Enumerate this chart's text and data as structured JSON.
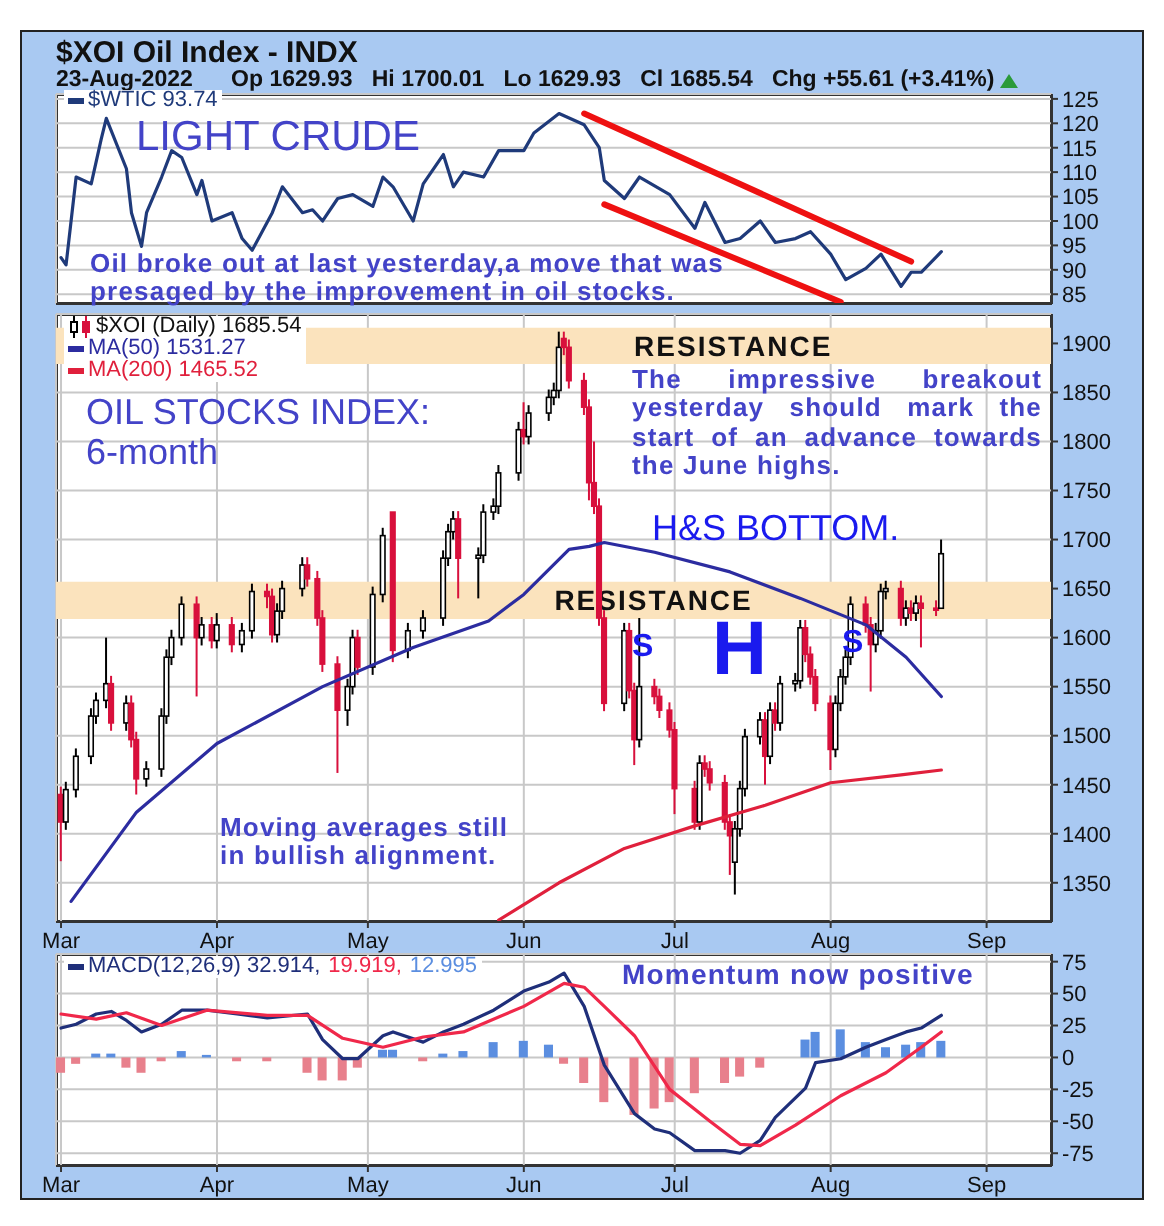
{
  "chart_data": [
    {
      "type": "line",
      "title": "$XOI Oil Index - INDX",
      "subtitle": "23-Aug-2022      Op 1629.93   Hi 1700.01   Lo 1629.93   Cl 1685.54   Chg +55.61 (+3.41%)",
      "annotations": [
        "LIGHT CRUDE",
        "Oil broke out at last yesterday,a move that was presaged by the improvement in oil stocks."
      ],
      "series": [
        {
          "name": "$WTIC 93.74",
          "color": "#1f3a7a",
          "x": [
            "2022-03-01",
            "2022-03-02",
            "2022-03-04",
            "2022-03-07",
            "2022-03-09",
            "2022-03-10",
            "2022-03-14",
            "2022-03-15",
            "2022-03-17",
            "2022-03-18",
            "2022-03-21",
            "2022-03-23",
            "2022-03-25",
            "2022-03-28",
            "2022-03-29",
            "2022-03-31",
            "2022-04-04",
            "2022-04-06",
            "2022-04-08",
            "2022-04-12",
            "2022-04-14",
            "2022-04-18",
            "2022-04-20",
            "2022-04-22",
            "2022-04-25",
            "2022-04-28",
            "2022-05-02",
            "2022-05-04",
            "2022-05-06",
            "2022-05-10",
            "2022-05-12",
            "2022-05-16",
            "2022-05-18",
            "2022-05-20",
            "2022-05-24",
            "2022-05-27",
            "2022-06-01",
            "2022-06-03",
            "2022-06-08",
            "2022-06-13",
            "2022-06-16",
            "2022-06-17",
            "2022-06-21",
            "2022-06-24",
            "2022-06-30",
            "2022-07-05",
            "2022-07-07",
            "2022-07-11",
            "2022-07-14",
            "2022-07-18",
            "2022-07-21",
            "2022-07-25",
            "2022-07-28",
            "2022-08-01",
            "2022-08-04",
            "2022-08-08",
            "2022-08-11",
            "2022-08-15",
            "2022-08-17",
            "2022-08-19",
            "2022-08-23"
          ],
          "values": [
            92.5,
            91,
            109,
            107.6,
            116.8,
            121,
            110.7,
            101.7,
            94.8,
            101.7,
            109,
            114.4,
            113,
            105.4,
            108.3,
            100,
            101.7,
            96.4,
            94,
            101.7,
            107,
            101.7,
            102.3,
            100,
            104.6,
            105.4,
            103,
            109,
            107,
            100,
            107.6,
            113.6,
            107,
            110,
            109,
            114.4,
            114.4,
            118,
            122,
            119.7,
            115,
            108.3,
            104.6,
            109,
            105.4,
            98.5,
            103.8,
            95.6,
            96.4,
            100,
            95.6,
            96.4,
            97.8,
            93.2,
            88,
            90.3,
            93.2,
            86.6,
            89.5,
            89.5,
            93.7
          ]
        },
        {
          "type": "line",
          "color": "#ee1111",
          "x": [
            "2022-06-13",
            "2022-08-17"
          ],
          "values": [
            122,
            91.7
          ]
        },
        {
          "type": "line",
          "color": "#ee1111",
          "x": [
            "2022-06-17",
            "2022-08-03"
          ],
          "values": [
            103.4,
            83.4
          ]
        }
      ],
      "xlim": [
        "2022-02-28",
        "2022-09-14"
      ],
      "xticks": [
        {
          "value": "2022-03-01",
          "label": null
        },
        {
          "value": "2022-04-01",
          "label": null
        },
        {
          "value": "2022-05-01",
          "label": null
        },
        {
          "value": "2022-06-01",
          "label": null
        },
        {
          "value": "2022-07-01",
          "label": null
        },
        {
          "value": "2022-08-01",
          "label": null
        },
        {
          "value": "2022-09-01",
          "label": null
        }
      ],
      "ylim": [
        83,
        126
      ],
      "yticks": [
        85,
        90,
        95,
        100,
        105,
        110,
        115,
        120,
        125
      ],
      "grid": true,
      "legend": "top left",
      "tick_labels": "y"
    },
    {
      "type": "candlestick",
      "annotations": [
        "OIL STOCKS INDEX: 6-month",
        "The impressive breakout yesterday should mark the start of an advance towards the June highs.",
        "H&S BOTTOM.",
        "Moving averages still in bullish alignment.",
        "S",
        "H",
        "S"
      ],
      "bands": [
        {
          "axis": "y",
          "from": 1879,
          "to": 1916,
          "label": "RESISTANCE",
          "color": "#fbe3bd"
        },
        {
          "axis": "y",
          "from": 1619,
          "to": 1657,
          "label": "RESISTANCE",
          "color": "#fbe3bd"
        }
      ],
      "series": [
        {
          "type": "candlestick",
          "name": "$XOI (Daily) 1685.54",
          "color": "#d8103c",
          "colors": [
            "#d8103c",
            "#ffffff",
            "#ffffff",
            "#ffffff",
            "#ffffff",
            "#ffffff",
            "#d8103c",
            "#ffffff",
            "#d8103c",
            "#d8103c",
            "#ffffff",
            "#ffffff",
            "#ffffff",
            "#ffffff",
            "#ffffff",
            "#d8103c",
            "#ffffff",
            "#d8103c",
            "#ffffff",
            "#d8103c",
            "#ffffff",
            "#ffffff",
            "#d8103c",
            "#d8103c",
            "#ffffff",
            "#ffffff",
            "#ffffff",
            "#d8103c",
            "#d8103c",
            "#d8103c",
            "#d8103c",
            "#ffffff",
            "#ffffff",
            "#d8103c",
            "#ffffff",
            "#ffffff",
            "#d8103c",
            "#ffffff",
            "#ffffff",
            "#ffffff",
            "#ffffff",
            "#ffffff",
            "#d8103c",
            "#ffffff",
            "#ffffff",
            "#ffffff",
            "#ffffff",
            "#ffffff",
            "#d8103c",
            "#ffffff",
            "#ffffff",
            "#ffffff",
            "#ffffff",
            "#d8103c",
            "#d8103c",
            "#d8103c",
            "#d8103c",
            "#d8103c",
            "#d8103c",
            "#d8103c",
            "#ffffff",
            "#d8103c",
            "#d8103c",
            "#ffffff",
            "#d8103c",
            "#d8103c",
            "#d8103c",
            "#d8103c",
            "#d8103c",
            "#ffffff",
            "#d8103c",
            "#d8103c",
            "#d8103c",
            "#d8103c",
            "#ffffff",
            "#ffffff",
            "#ffffff",
            "#ffffff",
            "#d8103c",
            "#ffffff",
            "#d8103c",
            "#ffffff",
            "#ffffff",
            "#ffffff",
            "#d8103c",
            "#d8103c",
            "#d8103c",
            "#d8103c",
            "#ffffff",
            "#ffffff",
            "#ffffff",
            "#ffffff",
            "#d8103c",
            "#d8103c",
            "#ffffff",
            "#ffffff",
            "#ffffff",
            "#d8103c",
            "#ffffff",
            "#d8103c",
            "#ffffff",
            "#d8103c",
            "#d8103c",
            "#ffffff"
          ],
          "x": [
            "2022-03-01",
            "2022-03-02",
            "2022-03-04",
            "2022-03-07",
            "2022-03-08",
            "2022-03-10",
            "2022-03-11",
            "2022-03-14",
            "2022-03-15",
            "2022-03-16",
            "2022-03-18",
            "2022-03-21",
            "2022-03-22",
            "2022-03-23",
            "2022-03-25",
            "2022-03-28",
            "2022-03-29",
            "2022-03-31",
            "2022-04-01",
            "2022-04-04",
            "2022-04-06",
            "2022-04-08",
            "2022-04-11",
            "2022-04-12",
            "2022-04-13",
            "2022-04-14",
            "2022-04-18",
            "2022-04-19",
            "2022-04-21",
            "2022-04-22",
            "2022-04-25",
            "2022-04-27",
            "2022-04-28",
            "2022-04-29",
            "2022-05-02",
            "2022-05-04",
            "2022-05-06",
            "2022-05-09",
            "2022-05-12",
            "2022-05-16",
            "2022-05-17",
            "2022-05-18",
            "2022-05-19",
            "2022-05-23",
            "2022-05-24",
            "2022-05-26",
            "2022-05-27",
            "2022-05-31",
            "2022-06-01",
            "2022-06-02",
            "2022-06-06",
            "2022-06-07",
            "2022-06-08",
            "2022-06-09",
            "2022-06-10",
            "2022-06-13",
            "2022-06-14",
            "2022-06-15",
            "2022-06-16",
            "2022-06-17",
            "2022-06-21",
            "2022-06-22",
            "2022-06-23",
            "2022-06-24",
            "2022-06-27",
            "2022-06-28",
            "2022-06-30",
            "2022-07-01",
            "2022-07-05",
            "2022-07-06",
            "2022-07-07",
            "2022-07-08",
            "2022-07-11",
            "2022-07-12",
            "2022-07-13",
            "2022-07-14",
            "2022-07-15",
            "2022-07-18",
            "2022-07-19",
            "2022-07-20",
            "2022-07-21",
            "2022-07-22",
            "2022-07-25",
            "2022-07-26",
            "2022-07-27",
            "2022-07-28",
            "2022-07-29",
            "2022-08-01",
            "2022-08-02",
            "2022-08-03",
            "2022-08-04",
            "2022-08-05",
            "2022-08-08",
            "2022-08-09",
            "2022-08-10",
            "2022-08-11",
            "2022-08-12",
            "2022-08-15",
            "2022-08-16",
            "2022-08-17",
            "2022-08-18",
            "2022-08-19",
            "2022-08-22",
            "2022-08-23"
          ],
          "ohlc": [
            [
              1440,
              1448,
              1372,
              1412
            ],
            [
              1412,
              1453,
              1404,
              1445
            ],
            [
              1445,
              1487,
              1437,
              1479
            ],
            [
              1479,
              1528,
              1471,
              1520
            ],
            [
              1520,
              1544,
              1512,
              1536
            ],
            [
              1536,
              1600,
              1528,
              1553
            ],
            [
              1553,
              1561,
              1505,
              1513
            ],
            [
              1513,
              1541,
              1505,
              1533
            ],
            [
              1533,
              1541,
              1488,
              1496
            ],
            [
              1496,
              1504,
              1440,
              1456
            ],
            [
              1456,
              1474,
              1448,
              1466
            ],
            [
              1466,
              1528,
              1458,
              1520
            ],
            [
              1520,
              1588,
              1512,
              1580
            ],
            [
              1580,
              1608,
              1572,
              1600
            ],
            [
              1600,
              1642,
              1592,
              1634
            ],
            [
              1634,
              1642,
              1540,
              1600
            ],
            [
              1600,
              1621,
              1592,
              1613
            ],
            [
              1613,
              1621,
              1589,
              1597
            ],
            [
              1597,
              1625,
              1589,
              1613
            ],
            [
              1613,
              1621,
              1585,
              1593
            ],
            [
              1593,
              1615,
              1585,
              1607
            ],
            [
              1607,
              1655,
              1599,
              1647
            ],
            [
              1647,
              1655,
              1630,
              1642
            ],
            [
              1642,
              1650,
              1595,
              1603
            ],
            [
              1603,
              1635,
              1595,
              1627
            ],
            [
              1627,
              1658,
              1619,
              1650
            ],
            [
              1650,
              1682,
              1642,
              1674
            ],
            [
              1674,
              1682,
              1652,
              1660
            ],
            [
              1660,
              1668,
              1612,
              1620
            ],
            [
              1620,
              1628,
              1565,
              1573
            ],
            [
              1573,
              1581,
              1462,
              1526
            ],
            [
              1526,
              1558,
              1510,
              1550
            ],
            [
              1550,
              1608,
              1542,
              1600
            ],
            [
              1600,
              1608,
              1562,
              1570
            ],
            [
              1570,
              1652,
              1562,
              1644
            ],
            [
              1644,
              1712,
              1636,
              1704
            ],
            [
              1728,
              1728,
              1575,
              1587
            ],
            [
              1587,
              1615,
              1579,
              1607
            ],
            [
              1607,
              1628,
              1599,
              1620
            ],
            [
              1620,
              1689,
              1612,
              1681
            ],
            [
              1681,
              1716,
              1673,
              1708
            ],
            [
              1708,
              1729,
              1700,
              1721
            ],
            [
              1721,
              1729,
              1640,
              1681
            ],
            [
              1681,
              1692,
              1640,
              1684
            ],
            [
              1684,
              1736,
              1676,
              1728
            ],
            [
              1728,
              1742,
              1720,
              1734
            ],
            [
              1734,
              1776,
              1726,
              1768
            ],
            [
              1768,
              1820,
              1760,
              1812
            ],
            [
              1812,
              1840,
              1797,
              1805
            ],
            [
              1805,
              1837,
              1797,
              1829
            ],
            [
              1829,
              1853,
              1821,
              1845
            ],
            [
              1845,
              1860,
              1837,
              1852
            ],
            [
              1852,
              1912,
              1844,
              1896
            ],
            [
              1905,
              1912,
              1888,
              1896
            ],
            [
              1896,
              1904,
              1854,
              1862
            ],
            [
              1862,
              1870,
              1827,
              1835
            ],
            [
              1835,
              1843,
              1740,
              1758
            ],
            [
              1758,
              1800,
              1726,
              1734
            ],
            [
              1734,
              1742,
              1612,
              1620
            ],
            [
              1620,
              1628,
              1525,
              1533
            ],
            [
              1533,
              1615,
              1525,
              1607
            ],
            [
              1607,
              1615,
              1538,
              1546
            ],
            [
              1546,
              1554,
              1470,
              1496
            ],
            [
              1496,
              1620,
              1488,
              1550
            ],
            [
              1550,
              1558,
              1532,
              1540
            ],
            [
              1540,
              1548,
              1518,
              1526
            ],
            [
              1526,
              1534,
              1498,
              1506
            ],
            [
              1506,
              1514,
              1420,
              1446
            ],
            [
              1446,
              1454,
              1404,
              1412
            ],
            [
              1412,
              1480,
              1404,
              1472
            ],
            [
              1472,
              1480,
              1458,
              1466
            ],
            [
              1466,
              1474,
              1444,
              1452
            ],
            [
              1452,
              1460,
              1404,
              1412
            ],
            [
              1412,
              1420,
              1358,
              1398
            ],
            [
              1371,
              1413,
              1338,
              1405
            ],
            [
              1405,
              1454,
              1397,
              1446
            ],
            [
              1446,
              1507,
              1438,
              1499
            ],
            [
              1499,
              1524,
              1491,
              1516
            ],
            [
              1516,
              1524,
              1450,
              1479
            ],
            [
              1479,
              1534,
              1471,
              1526
            ],
            [
              1526,
              1534,
              1505,
              1513
            ],
            [
              1513,
              1561,
              1505,
              1553
            ],
            [
              1553,
              1564,
              1545,
              1556
            ],
            [
              1556,
              1618,
              1548,
              1610
            ],
            [
              1610,
              1618,
              1575,
              1583
            ],
            [
              1583,
              1591,
              1552,
              1560
            ],
            [
              1560,
              1568,
              1525,
              1533
            ],
            [
              1533,
              1541,
              1465,
              1486
            ],
            [
              1486,
              1541,
              1478,
              1533
            ],
            [
              1533,
              1568,
              1525,
              1560
            ],
            [
              1560,
              1588,
              1552,
              1580
            ],
            [
              1580,
              1642,
              1572,
              1634
            ],
            [
              1634,
              1642,
              1605,
              1613
            ],
            [
              1613,
              1621,
              1545,
              1593
            ],
            [
              1593,
              1615,
              1585,
              1607
            ],
            [
              1607,
              1655,
              1599,
              1647
            ],
            [
              1647,
              1658,
              1639,
              1650
            ],
            [
              1650,
              1658,
              1612,
              1620
            ],
            [
              1620,
              1638,
              1612,
              1630
            ],
            [
              1630,
              1638,
              1617,
              1625
            ],
            [
              1625,
              1643,
              1617,
              1635
            ],
            [
              1635,
              1643,
              1590,
              1630
            ],
            [
              1630,
              1638,
              1622,
              1629.93
            ],
            [
              1629.93,
              1700.01,
              1629.93,
              1685.54
            ]
          ]
        },
        {
          "type": "line",
          "name": "MA(50) 1531.27",
          "color": "#2c2ca0",
          "x": [
            "2022-03-03",
            "2022-03-16",
            "2022-04-01",
            "2022-04-22",
            "2022-05-10",
            "2022-05-25",
            "2022-06-01",
            "2022-06-10",
            "2022-06-14",
            "2022-06-17",
            "2022-06-27",
            "2022-07-12",
            "2022-07-26",
            "2022-08-08",
            "2022-08-16",
            "2022-08-23"
          ],
          "values": [
            1331,
            1422,
            1492,
            1550,
            1590,
            1617,
            1644,
            1690,
            1693,
            1697,
            1687,
            1667,
            1640,
            1613,
            1580,
            1540
          ]
        },
        {
          "type": "line",
          "name": "MA(200) 1465.52",
          "color": "#e0203c",
          "x": [
            "2022-05-27",
            "2022-06-08",
            "2022-06-21",
            "2022-07-05",
            "2022-07-19",
            "2022-08-01",
            "2022-08-15",
            "2022-08-23"
          ],
          "values": [
            1312,
            1350,
            1385,
            1408,
            1429,
            1452,
            1460,
            1465
          ]
        }
      ],
      "xlim": [
        "2022-02-28",
        "2022-09-14"
      ],
      "xticks": [
        {
          "value": "2022-03-01",
          "label": "Mar"
        },
        {
          "value": "2022-04-01",
          "label": "Apr"
        },
        {
          "value": "2022-05-01",
          "label": "May"
        },
        {
          "value": "2022-06-01",
          "label": "Jun"
        },
        {
          "value": "2022-07-01",
          "label": "Jul"
        },
        {
          "value": "2022-08-01",
          "label": "Aug"
        },
        {
          "value": "2022-09-01",
          "label": "Sep"
        }
      ],
      "ylim": [
        1310,
        1930
      ],
      "yticks": [
        1350,
        1400,
        1450,
        1500,
        1550,
        1600,
        1650,
        1700,
        1750,
        1800,
        1850,
        1900
      ],
      "grid": true,
      "legend": "top left"
    },
    {
      "type": "line",
      "annotations": [
        "Momentum now positive"
      ],
      "series": [
        {
          "name": "MACD(12,26,9) 32.914,",
          "color": "#1f2f7a",
          "x": [
            "2022-03-01",
            "2022-03-04",
            "2022-03-08",
            "2022-03-11",
            "2022-03-14",
            "2022-03-17",
            "2022-03-21",
            "2022-03-25",
            "2022-03-30",
            "2022-04-05",
            "2022-04-11",
            "2022-04-19",
            "2022-04-22",
            "2022-04-26",
            "2022-04-29",
            "2022-05-04",
            "2022-05-06",
            "2022-05-12",
            "2022-05-16",
            "2022-05-20",
            "2022-05-26",
            "2022-06-01",
            "2022-06-06",
            "2022-06-09",
            "2022-06-13",
            "2022-06-17",
            "2022-06-23",
            "2022-06-27",
            "2022-06-30",
            "2022-07-05",
            "2022-07-11",
            "2022-07-14",
            "2022-07-18",
            "2022-07-21",
            "2022-07-27",
            "2022-07-29",
            "2022-08-03",
            "2022-08-08",
            "2022-08-12",
            "2022-08-16",
            "2022-08-19",
            "2022-08-23"
          ],
          "values": [
            23,
            26,
            34,
            36,
            29,
            20,
            26,
            37,
            37,
            34,
            31,
            34,
            14,
            -1,
            -1,
            17,
            20,
            12,
            20,
            26,
            37,
            52,
            59,
            66,
            40,
            -6,
            -44,
            -56,
            -59,
            -73,
            -73,
            -75,
            -65,
            -47,
            -24,
            -4,
            -1,
            8,
            14,
            20,
            23,
            33
          ]
        },
        {
          "name": "19.919,",
          "color": "#f0284a",
          "x": [
            "2022-03-01",
            "2022-03-08",
            "2022-03-14",
            "2022-03-21",
            "2022-03-30",
            "2022-04-11",
            "2022-04-19",
            "2022-04-26",
            "2022-05-04",
            "2022-05-12",
            "2022-05-20",
            "2022-06-01",
            "2022-06-09",
            "2022-06-13",
            "2022-06-17",
            "2022-06-23",
            "2022-06-30",
            "2022-07-08",
            "2022-07-14",
            "2022-07-18",
            "2022-07-25",
            "2022-08-03",
            "2022-08-12",
            "2022-08-19",
            "2022-08-23"
          ],
          "values": [
            34,
            30,
            35,
            25,
            37,
            33,
            33,
            15,
            8,
            16,
            20,
            40,
            58,
            55,
            40,
            17,
            -25,
            -50,
            -68,
            -69,
            -53,
            -30,
            -12,
            8,
            20
          ]
        },
        {
          "type": "bar",
          "name": "12.995",
          "color": "#5b8ee0",
          "x": [
            "2022-03-01",
            "2022-03-04",
            "2022-03-08",
            "2022-03-11",
            "2022-03-14",
            "2022-03-17",
            "2022-03-21",
            "2022-03-25",
            "2022-03-30",
            "2022-04-05",
            "2022-04-11",
            "2022-04-19",
            "2022-04-22",
            "2022-04-26",
            "2022-04-29",
            "2022-05-04",
            "2022-05-06",
            "2022-05-12",
            "2022-05-16",
            "2022-05-20",
            "2022-05-26",
            "2022-06-01",
            "2022-06-06",
            "2022-06-09",
            "2022-06-13",
            "2022-06-17",
            "2022-06-23",
            "2022-06-27",
            "2022-06-30",
            "2022-07-05",
            "2022-07-11",
            "2022-07-14",
            "2022-07-18",
            "2022-07-21",
            "2022-07-27",
            "2022-07-29",
            "2022-08-03",
            "2022-08-08",
            "2022-08-12",
            "2022-08-16",
            "2022-08-19",
            "2022-08-23"
          ],
          "values": [
            -12,
            -5,
            3,
            3,
            -8,
            -12,
            -3,
            5,
            2,
            -3,
            -3,
            -12,
            -18,
            -18,
            -8,
            6,
            6,
            -3,
            3,
            5,
            12,
            13,
            10,
            -5,
            -20,
            -35,
            -45,
            -40,
            -35,
            -28,
            -20,
            -15,
            -8,
            0,
            14,
            20,
            22,
            12,
            8,
            10,
            12,
            13
          ],
          "colors": [
            "#e8808c",
            "#e8808c",
            "#5b8ee0",
            "#5b8ee0",
            "#e8808c",
            "#e8808c",
            "#e8808c",
            "#5b8ee0",
            "#5b8ee0",
            "#e8808c",
            "#e8808c",
            "#e8808c",
            "#e8808c",
            "#e8808c",
            "#e8808c",
            "#5b8ee0",
            "#5b8ee0",
            "#e8808c",
            "#5b8ee0",
            "#5b8ee0",
            "#5b8ee0",
            "#5b8ee0",
            "#5b8ee0",
            "#e8808c",
            "#e8808c",
            "#e8808c",
            "#e8808c",
            "#e8808c",
            "#e8808c",
            "#e8808c",
            "#e8808c",
            "#e8808c",
            "#e8808c",
            "#5b8ee0",
            "#5b8ee0",
            "#5b8ee0",
            "#5b8ee0",
            "#5b8ee0",
            "#5b8ee0",
            "#5b8ee0",
            "#5b8ee0",
            "#5b8ee0"
          ]
        }
      ],
      "xlim": [
        "2022-02-28",
        "2022-09-14"
      ],
      "xticks": [
        {
          "value": "2022-03-01",
          "label": "Mar"
        },
        {
          "value": "2022-04-01",
          "label": "Apr"
        },
        {
          "value": "2022-05-01",
          "label": "May"
        },
        {
          "value": "2022-06-01",
          "label": "Jun"
        },
        {
          "value": "2022-07-01",
          "label": "Jul"
        },
        {
          "value": "2022-08-01",
          "label": "Aug"
        },
        {
          "value": "2022-09-01",
          "label": "Sep"
        }
      ],
      "ylim": [
        -85,
        81
      ],
      "yticks": [
        -75,
        -50,
        -25,
        0,
        25,
        50,
        75
      ],
      "grid": true,
      "legend": "top left"
    }
  ]
}
